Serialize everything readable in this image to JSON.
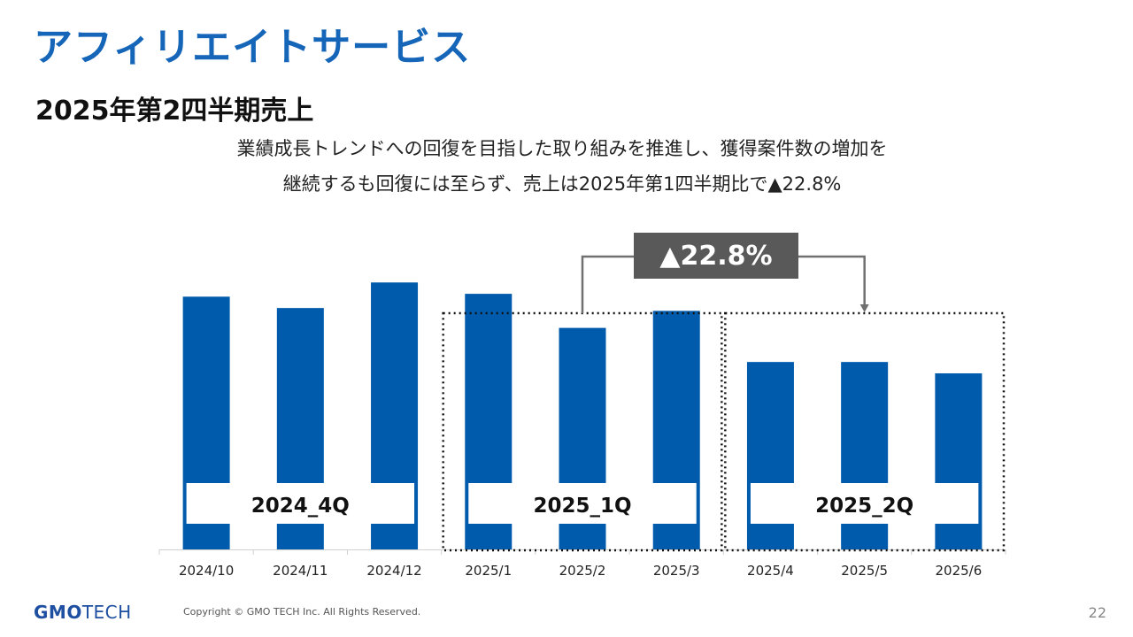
{
  "slide": {
    "title": "アフィリエイトサービス",
    "subtitle": "2025年第2四半期売上",
    "description_line1": "業績成長トレンドへの回復を目指した取り組みを推進し、獲得案件数の増加を",
    "description_line2": "継続するも回復には至らず、売上は2025年第1四半期比で▲22.8%",
    "page_number": "22"
  },
  "footer": {
    "logo_part1": "GMO",
    "logo_part2": "TECH",
    "copyright": "Copyright © GMO TECH Inc. All Rights Reserved."
  },
  "chart_data": {
    "type": "bar",
    "categories": [
      "2024/10",
      "2024/11",
      "2024/12",
      "2025/1",
      "2025/2",
      "2025/3",
      "2025/4",
      "2025/5",
      "2025/6"
    ],
    "values": [
      89,
      85,
      94,
      90,
      78,
      84,
      66,
      66,
      62
    ],
    "ylim": [
      0,
      100
    ],
    "bar_color": "#005bac",
    "quarter_labels": [
      "2024_4Q",
      "2025_1Q",
      "2025_2Q"
    ],
    "change_label": "▲22.8%",
    "change_box_color": "#595959"
  }
}
